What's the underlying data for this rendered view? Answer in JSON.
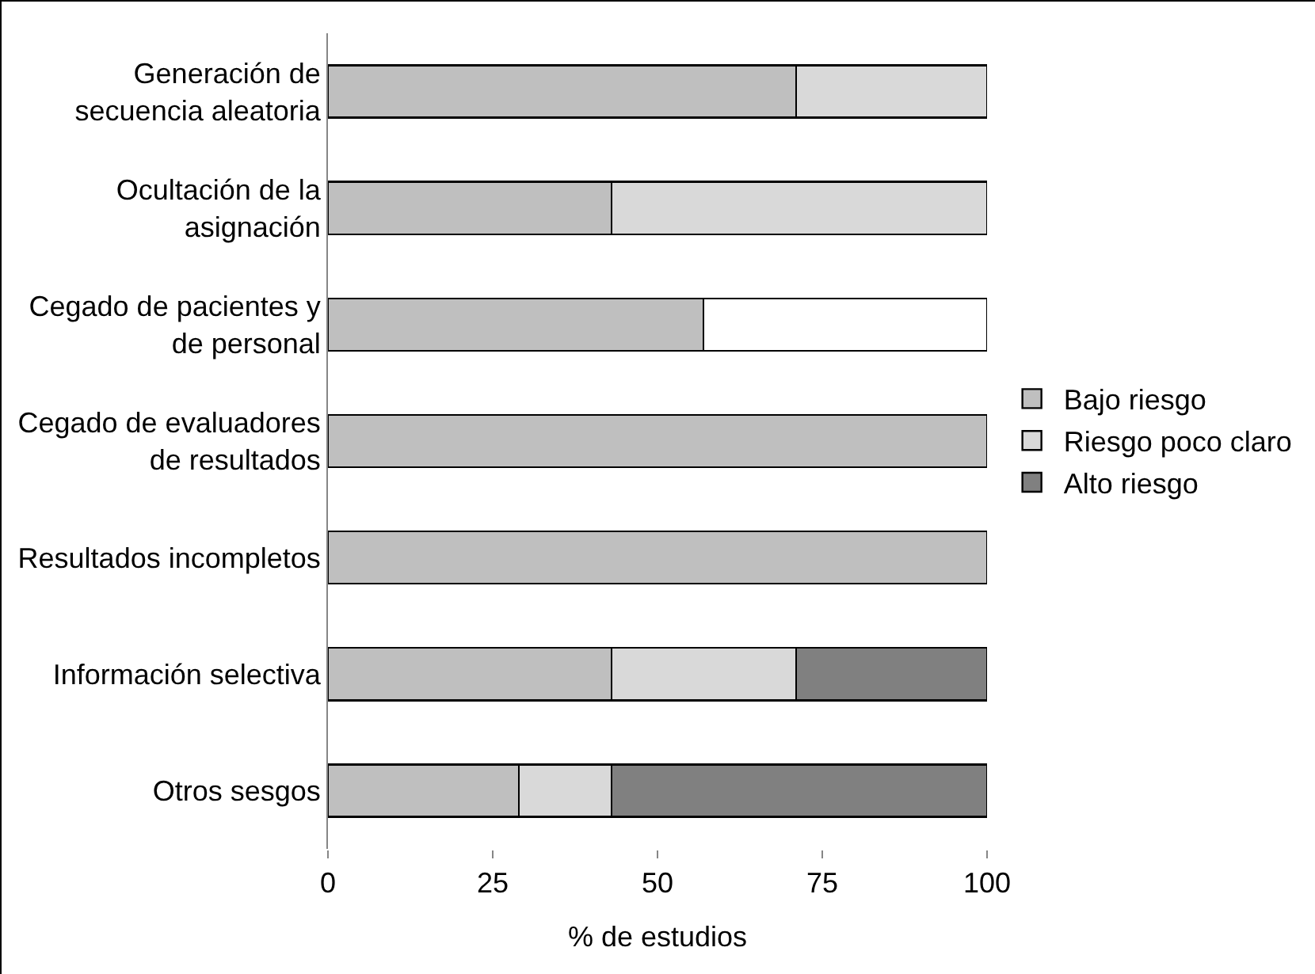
{
  "chart_data": {
    "type": "bar",
    "orientation": "horizontal",
    "stacked": true,
    "xlabel": "% de estudios",
    "categories": [
      "Generación de secuencia aleatoria",
      "Ocultación de la asignación",
      "Cegado de pacientes y de personal",
      "Cegado de evaluadores de resultados",
      "Resultados incompletos",
      "Información selectiva",
      "Otros sesgos"
    ],
    "series": [
      {
        "name": "Bajo riesgo",
        "color": "#bfbfbf",
        "values": [
          71,
          43,
          57,
          100,
          100,
          43,
          29
        ]
      },
      {
        "name": "Riesgo poco claro",
        "color": "#d9d9d9",
        "values": [
          29,
          57,
          null,
          null,
          null,
          28,
          14
        ]
      },
      {
        "name": "Alto riesgo",
        "color": "#808080",
        "values": [
          null,
          null,
          null,
          null,
          null,
          29,
          57
        ]
      },
      {
        "color": "#ffffff",
        "values": [
          null,
          null,
          43,
          null,
          null,
          null,
          null
        ]
      }
    ],
    "xlim": [
      0,
      100
    ],
    "xticks": [
      0,
      25,
      50,
      75,
      100
    ],
    "grid": false,
    "legend": "right"
  }
}
